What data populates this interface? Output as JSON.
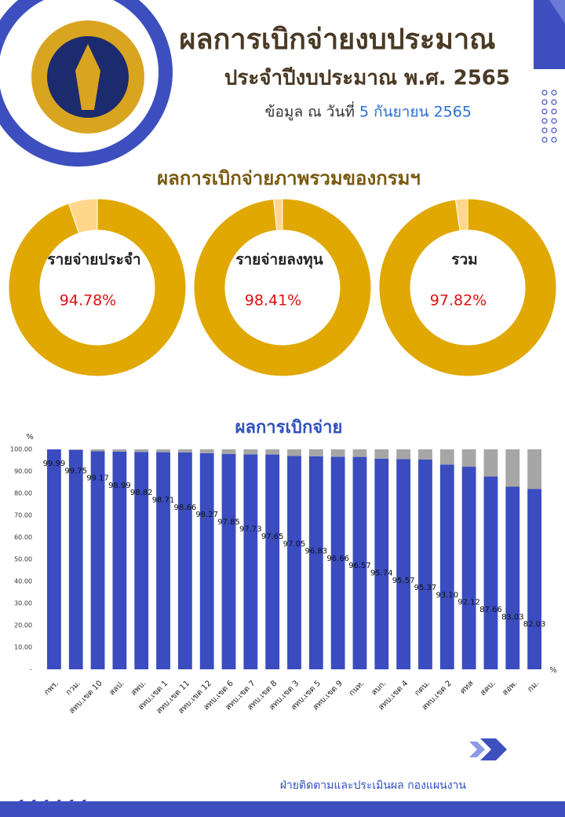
{
  "header": {
    "title": "ผลการเบิกจ่ายงบประมาณ",
    "subtitle": "ประจำปีงบประมาณ พ.ศ. 2565",
    "date_prefix": "ข้อมูล ณ วันที่",
    "date": "5 กันยายน 2565",
    "overview_title": "ผลการเบิกจ่ายภาพรวมของกรมฯ"
  },
  "footer": "ฝ่ายติดตามและประเมินผล กองแผนงาน",
  "chart_data": [
    {
      "type": "donut",
      "name": "รายจ่ายประจำ",
      "values": [
        94.78,
        5.22
      ],
      "value_labels": [
        "94.78%",
        null
      ],
      "colors": [
        "#e0a800",
        "#ffd68a"
      ]
    },
    {
      "type": "donut",
      "name": "รายจ่ายลงทุน",
      "values": [
        98.41,
        1.59
      ],
      "value_labels": [
        "98.41%",
        null
      ],
      "colors": [
        "#e0a800",
        "#ffd68a"
      ]
    },
    {
      "type": "donut",
      "name": "รวม",
      "values": [
        97.82,
        2.18
      ],
      "value_labels": [
        "97.82%",
        null
      ],
      "colors": [
        "#e0a800",
        "#ffd68a"
      ]
    },
    {
      "type": "stacked_bar",
      "title": "ผลการเบิกจ่าย",
      "y_label": "%",
      "x_label": "%",
      "categories": [
        "กพร.",
        "กวม.",
        "สทบ.เขต 10",
        "สลป.",
        "สพบ.",
        "สทบ.เขต 1",
        "สทบ.เขต 11",
        "สทบ.เขต 12",
        "สทบ.เขต 6",
        "สทบ.เขต 7",
        "สทบ.เขต 8",
        "สทบ.เขต 3",
        "สทบ.เขต 5",
        "สทบ.เขต 9",
        "กนท.",
        "สบก.",
        "สทบ.เขต 4",
        "กตน.",
        "สทบ.เขต 2",
        "ศทส",
        "สคบ.",
        "สอพ.",
        "กม."
      ],
      "series": [
        {
          "color": "#3a4cc0",
          "values": [
            99.99,
            99.75,
            99.17,
            98.99,
            98.82,
            98.71,
            98.66,
            98.27,
            97.85,
            97.73,
            97.65,
            97.05,
            96.83,
            96.66,
            96.57,
            95.74,
            95.57,
            95.37,
            93.1,
            92.12,
            87.66,
            83.03,
            82.03
          ],
          "value_labels": [
            "99.99",
            "99.75",
            "99.17",
            "98.99",
            "98.82",
            "98.71",
            "98.66",
            "98.27",
            "97.85",
            "97.73",
            "97.65",
            "97.05",
            "96.83",
            "96.66",
            "96.57",
            "95.74",
            "95.57",
            "95.37",
            "93.10",
            "92.12",
            "87.66",
            "83.03",
            "82.03"
          ]
        },
        {
          "color": "#a6a6a6",
          "values": [
            0.01,
            0.25,
            0.83,
            1.01,
            1.18,
            1.29,
            1.34,
            1.73,
            2.15,
            2.27,
            2.35,
            2.95,
            3.17,
            3.34,
            3.43,
            4.26,
            4.43,
            4.63,
            6.9,
            7.88,
            12.34,
            16.97,
            17.97
          ]
        }
      ],
      "ylim": [
        0,
        100
      ],
      "yticks": [
        {
          "value": 0,
          "label": "-"
        },
        {
          "value": 10,
          "label": "10.00"
        },
        {
          "value": 20,
          "label": "20.00"
        },
        {
          "value": 30,
          "label": "30.00"
        },
        {
          "value": 40,
          "label": "40.00"
        },
        {
          "value": 50,
          "label": "50.00"
        },
        {
          "value": 60,
          "label": "60.00"
        },
        {
          "value": 70,
          "label": "70.00"
        },
        {
          "value": 80,
          "label": "80.00"
        },
        {
          "value": 90,
          "label": "90.00"
        },
        {
          "value": 100,
          "label": "100.00"
        }
      ]
    }
  ]
}
